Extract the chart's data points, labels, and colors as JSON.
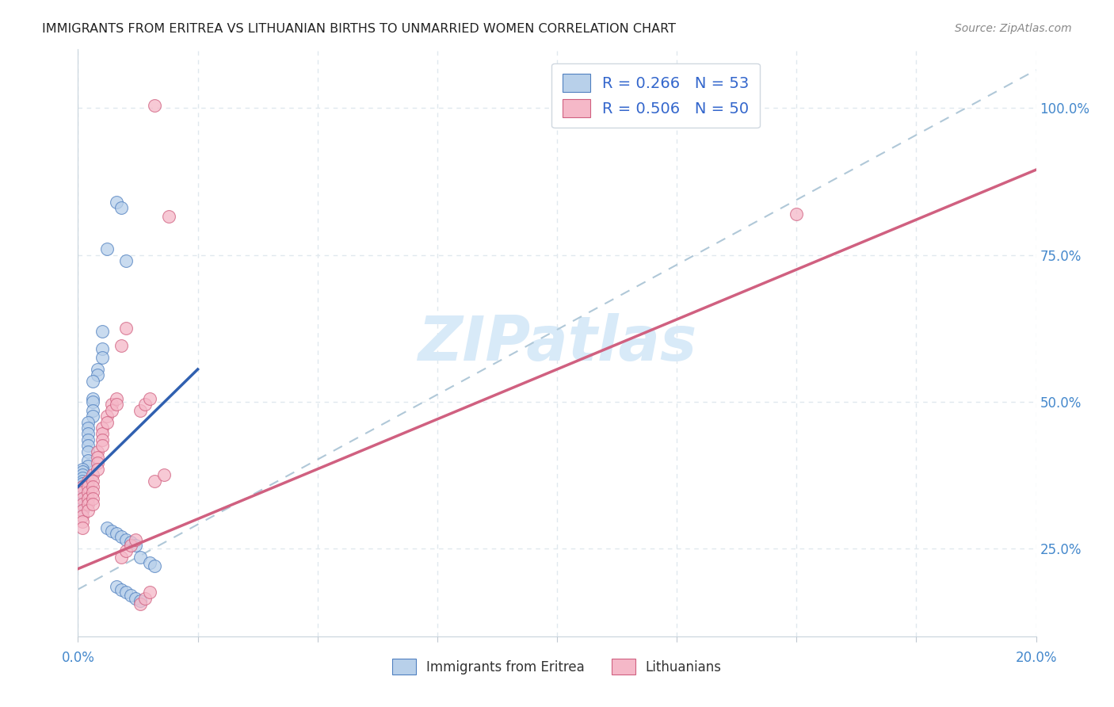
{
  "title": "IMMIGRANTS FROM ERITREA VS LITHUANIAN BIRTHS TO UNMARRIED WOMEN CORRELATION CHART",
  "source": "Source: ZipAtlas.com",
  "ylabel": "Births to Unmarried Women",
  "ytick_values": [
    0.25,
    0.5,
    0.75,
    1.0
  ],
  "blue_color": "#b8d0ea",
  "pink_color": "#f5b8c8",
  "blue_edge_color": "#5080c0",
  "pink_edge_color": "#d06080",
  "blue_line_color": "#3060b0",
  "pink_line_color": "#d06080",
  "dashed_line_color": "#b0c8d8",
  "watermark_color": "#d8eaf8",
  "xmin": 0.0,
  "xmax": 0.2,
  "ymin": 0.1,
  "ymax": 1.1,
  "grid_color": "#e0e8ee",
  "background_color": "#ffffff",
  "blue_scatter": [
    [
      0.008,
      0.84
    ],
    [
      0.009,
      0.83
    ],
    [
      0.006,
      0.76
    ],
    [
      0.01,
      0.74
    ],
    [
      0.005,
      0.62
    ],
    [
      0.005,
      0.59
    ],
    [
      0.005,
      0.575
    ],
    [
      0.004,
      0.555
    ],
    [
      0.004,
      0.545
    ],
    [
      0.003,
      0.535
    ],
    [
      0.003,
      0.505
    ],
    [
      0.003,
      0.5
    ],
    [
      0.003,
      0.485
    ],
    [
      0.003,
      0.475
    ],
    [
      0.002,
      0.465
    ],
    [
      0.002,
      0.455
    ],
    [
      0.002,
      0.445
    ],
    [
      0.002,
      0.435
    ],
    [
      0.002,
      0.425
    ],
    [
      0.002,
      0.415
    ],
    [
      0.002,
      0.4
    ],
    [
      0.002,
      0.39
    ],
    [
      0.001,
      0.385
    ],
    [
      0.001,
      0.38
    ],
    [
      0.001,
      0.375
    ],
    [
      0.001,
      0.37
    ],
    [
      0.001,
      0.365
    ],
    [
      0.001,
      0.36
    ],
    [
      0.001,
      0.355
    ],
    [
      0.001,
      0.35
    ],
    [
      0.001,
      0.345
    ],
    [
      0.001,
      0.34
    ],
    [
      0.001,
      0.335
    ],
    [
      0.001,
      0.33
    ],
    [
      0.001,
      0.325
    ],
    [
      0.001,
      0.32
    ],
    [
      0.001,
      0.315
    ],
    [
      0.006,
      0.285
    ],
    [
      0.007,
      0.28
    ],
    [
      0.008,
      0.275
    ],
    [
      0.009,
      0.27
    ],
    [
      0.01,
      0.265
    ],
    [
      0.011,
      0.26
    ],
    [
      0.012,
      0.255
    ],
    [
      0.013,
      0.235
    ],
    [
      0.015,
      0.225
    ],
    [
      0.016,
      0.22
    ],
    [
      0.008,
      0.185
    ],
    [
      0.009,
      0.18
    ],
    [
      0.01,
      0.175
    ],
    [
      0.011,
      0.17
    ],
    [
      0.012,
      0.165
    ],
    [
      0.013,
      0.16
    ]
  ],
  "pink_scatter": [
    [
      0.001,
      0.355
    ],
    [
      0.001,
      0.345
    ],
    [
      0.001,
      0.335
    ],
    [
      0.001,
      0.325
    ],
    [
      0.001,
      0.315
    ],
    [
      0.001,
      0.305
    ],
    [
      0.001,
      0.295
    ],
    [
      0.001,
      0.285
    ],
    [
      0.002,
      0.365
    ],
    [
      0.002,
      0.355
    ],
    [
      0.002,
      0.345
    ],
    [
      0.002,
      0.335
    ],
    [
      0.002,
      0.325
    ],
    [
      0.002,
      0.315
    ],
    [
      0.003,
      0.375
    ],
    [
      0.003,
      0.365
    ],
    [
      0.003,
      0.355
    ],
    [
      0.003,
      0.345
    ],
    [
      0.003,
      0.335
    ],
    [
      0.003,
      0.325
    ],
    [
      0.004,
      0.415
    ],
    [
      0.004,
      0.405
    ],
    [
      0.004,
      0.395
    ],
    [
      0.004,
      0.385
    ],
    [
      0.005,
      0.455
    ],
    [
      0.005,
      0.445
    ],
    [
      0.005,
      0.435
    ],
    [
      0.005,
      0.425
    ],
    [
      0.006,
      0.475
    ],
    [
      0.006,
      0.465
    ],
    [
      0.007,
      0.495
    ],
    [
      0.007,
      0.485
    ],
    [
      0.008,
      0.505
    ],
    [
      0.008,
      0.495
    ],
    [
      0.009,
      0.235
    ],
    [
      0.01,
      0.245
    ],
    [
      0.011,
      0.255
    ],
    [
      0.012,
      0.265
    ],
    [
      0.013,
      0.485
    ],
    [
      0.014,
      0.495
    ],
    [
      0.015,
      0.505
    ],
    [
      0.013,
      0.155
    ],
    [
      0.014,
      0.165
    ],
    [
      0.015,
      0.175
    ],
    [
      0.009,
      0.595
    ],
    [
      0.01,
      0.625
    ],
    [
      0.016,
      0.365
    ],
    [
      0.018,
      0.375
    ],
    [
      0.016,
      1.005
    ],
    [
      0.019,
      0.815
    ],
    [
      0.15,
      0.82
    ]
  ],
  "blue_line": [
    [
      0.0,
      0.355
    ],
    [
      0.025,
      0.555
    ]
  ],
  "pink_line": [
    [
      0.0,
      0.215
    ],
    [
      0.2,
      0.895
    ]
  ],
  "dashed_line": [
    [
      0.0,
      0.18
    ],
    [
      0.2,
      1.065
    ]
  ]
}
